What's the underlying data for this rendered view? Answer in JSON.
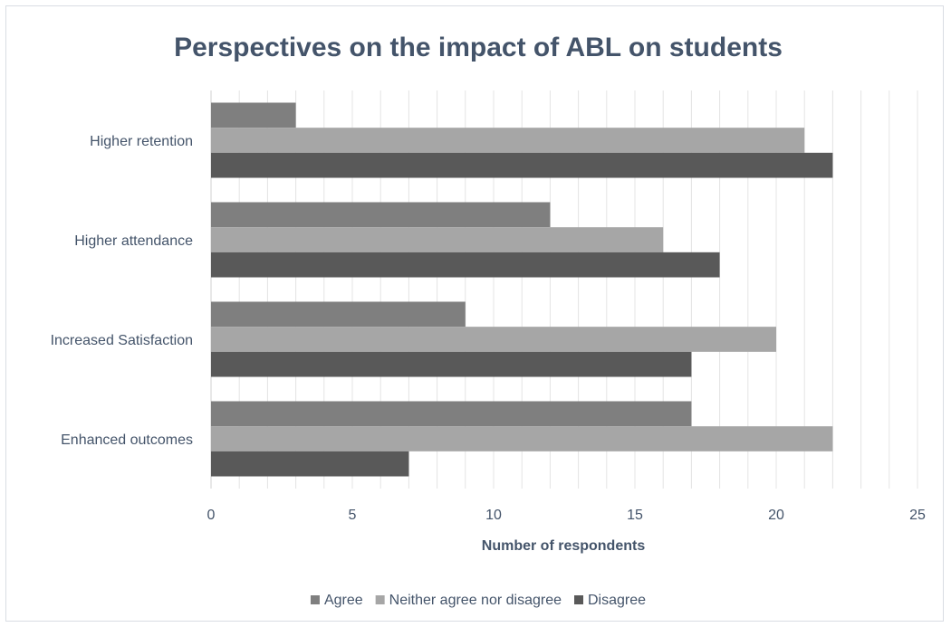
{
  "chart_data": {
    "type": "bar",
    "orientation": "horizontal",
    "title": "Perspectives on the impact of ABL on students",
    "xlabel": "Number of respondents",
    "ylabel": "",
    "categories": [
      "Higher retention",
      "Higher attendance",
      "Increased Satisfaction",
      "Enhanced outcomes"
    ],
    "series": [
      {
        "name": "Agree",
        "values": [
          3,
          12,
          9,
          17
        ],
        "color": "#7f7f7f"
      },
      {
        "name": "Neither agree nor disagree",
        "values": [
          21,
          16,
          20,
          22
        ],
        "color": "#a6a6a6"
      },
      {
        "name": "Disagree",
        "values": [
          22,
          18,
          17,
          7
        ],
        "color": "#595959"
      }
    ],
    "xlim": [
      0,
      25
    ],
    "xticks": [
      "0",
      "5",
      "10",
      "15",
      "20",
      "25"
    ],
    "grid": true,
    "legend_position": "bottom",
    "text_color": "#44546a"
  }
}
